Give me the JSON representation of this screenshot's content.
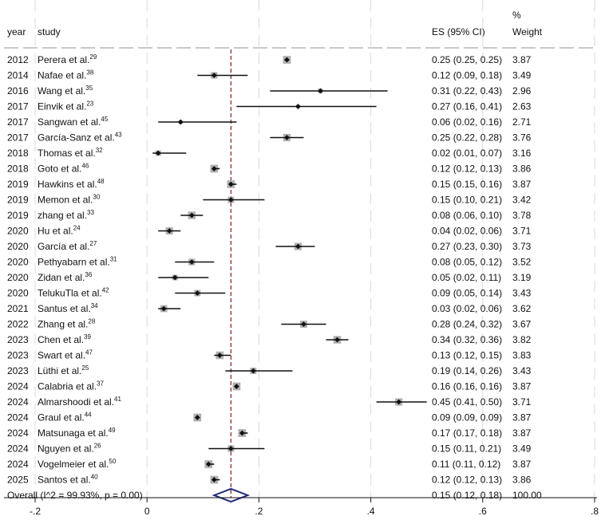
{
  "header": {
    "year": "year",
    "study": "study",
    "es": "ES (95% CI)",
    "weight_pct": "%",
    "weight": "Weight"
  },
  "chart_data": {
    "type": "forest",
    "xlim": [
      -0.2,
      0.8
    ],
    "x_ticks": [
      {
        "value": -0.2,
        "label": "-.2"
      },
      {
        "value": 0,
        "label": "0"
      },
      {
        "value": 0.2,
        "label": ".2"
      },
      {
        "value": 0.4,
        "label": ".4"
      },
      {
        "value": 0.6,
        "label": ".6"
      },
      {
        "value": 0.8,
        "label": ".8"
      }
    ],
    "reference_line": 0.15,
    "studies": [
      {
        "year": "2012",
        "name": "Perera et al.",
        "ref": "29",
        "es": 0.25,
        "lo": 0.25,
        "hi": 0.25,
        "es_ci": "0.25 (0.25, 0.25)",
        "weight": "3.87"
      },
      {
        "year": "2014",
        "name": "Nafae et al.",
        "ref": "38",
        "es": 0.12,
        "lo": 0.09,
        "hi": 0.18,
        "es_ci": "0.12 (0.09, 0.18)",
        "weight": "3.49"
      },
      {
        "year": "2016",
        "name": "Wang et al.",
        "ref": "35",
        "es": 0.31,
        "lo": 0.22,
        "hi": 0.43,
        "es_ci": "0.31 (0.22, 0.43)",
        "weight": "2.96"
      },
      {
        "year": "2017",
        "name": "Einvik et al.",
        "ref": "23",
        "es": 0.27,
        "lo": 0.16,
        "hi": 0.41,
        "es_ci": "0.27 (0.16, 0.41)",
        "weight": "2.63"
      },
      {
        "year": "2017",
        "name": "Sangwan et al.",
        "ref": "45",
        "es": 0.06,
        "lo": 0.02,
        "hi": 0.16,
        "es_ci": "0.06 (0.02, 0.16)",
        "weight": "2.71"
      },
      {
        "year": "2017",
        "name": "García-Sanz et al.",
        "ref": "43",
        "es": 0.25,
        "lo": 0.22,
        "hi": 0.28,
        "es_ci": "0.25 (0.22, 0.28)",
        "weight": "3.76"
      },
      {
        "year": "2018",
        "name": "Thomas et al.",
        "ref": "32",
        "es": 0.02,
        "lo": 0.01,
        "hi": 0.07,
        "es_ci": "0.02 (0.01, 0.07)",
        "weight": "3.16"
      },
      {
        "year": "2018",
        "name": "Goto et al.",
        "ref": "46",
        "es": 0.12,
        "lo": 0.12,
        "hi": 0.13,
        "es_ci": "0.12 (0.12, 0.13)",
        "weight": "3.86"
      },
      {
        "year": "2019",
        "name": "Hawkins et al.",
        "ref": "48",
        "es": 0.15,
        "lo": 0.15,
        "hi": 0.16,
        "es_ci": "0.15 (0.15, 0.16)",
        "weight": "3.87"
      },
      {
        "year": "2019",
        "name": "Memon et al.",
        "ref": "30",
        "es": 0.15,
        "lo": 0.1,
        "hi": 0.21,
        "es_ci": "0.15 (0.10, 0.21)",
        "weight": "3.42"
      },
      {
        "year": "2019",
        "name": "zhang et al.",
        "ref": "33",
        "es": 0.08,
        "lo": 0.06,
        "hi": 0.1,
        "es_ci": "0.08 (0.06, 0.10)",
        "weight": "3.78"
      },
      {
        "year": "2020",
        "name": "Hu et al.",
        "ref": "24",
        "es": 0.04,
        "lo": 0.02,
        "hi": 0.06,
        "es_ci": "0.04 (0.02, 0.06)",
        "weight": "3.71"
      },
      {
        "year": "2020",
        "name": "García et al.",
        "ref": "27",
        "es": 0.27,
        "lo": 0.23,
        "hi": 0.3,
        "es_ci": "0.27 (0.23, 0.30)",
        "weight": "3.73"
      },
      {
        "year": "2020",
        "name": "Pethyabarn et al.",
        "ref": "31",
        "es": 0.08,
        "lo": 0.05,
        "hi": 0.12,
        "es_ci": "0.08 (0.05, 0.12)",
        "weight": "3.52"
      },
      {
        "year": "2020",
        "name": "Zidan et al.",
        "ref": "36",
        "es": 0.05,
        "lo": 0.02,
        "hi": 0.11,
        "es_ci": "0.05 (0.02, 0.11)",
        "weight": "3.19"
      },
      {
        "year": "2020",
        "name": "TelukuTla et al.",
        "ref": "42",
        "es": 0.09,
        "lo": 0.05,
        "hi": 0.14,
        "es_ci": "0.09 (0.05, 0.14)",
        "weight": "3.43"
      },
      {
        "year": "2021",
        "name": "Santus et al.",
        "ref": "34",
        "es": 0.03,
        "lo": 0.02,
        "hi": 0.06,
        "es_ci": "0.03 (0.02, 0.06)",
        "weight": "3.62"
      },
      {
        "year": "2022",
        "name": "Zhang et al.",
        "ref": "28",
        "es": 0.28,
        "lo": 0.24,
        "hi": 0.32,
        "es_ci": "0.28 (0.24, 0.32)",
        "weight": "3.67"
      },
      {
        "year": "2023",
        "name": "Chen et al.",
        "ref": "39",
        "es": 0.34,
        "lo": 0.32,
        "hi": 0.36,
        "es_ci": "0.34 (0.32, 0.36)",
        "weight": "3.82"
      },
      {
        "year": "2023",
        "name": "Swart et al.",
        "ref": "47",
        "es": 0.13,
        "lo": 0.12,
        "hi": 0.15,
        "es_ci": "0.13 (0.12, 0.15)",
        "weight": "3.83"
      },
      {
        "year": "2023",
        "name": "Lüthi et al.",
        "ref": "25",
        "es": 0.19,
        "lo": 0.14,
        "hi": 0.26,
        "es_ci": "0.19 (0.14, 0.26)",
        "weight": "3.43"
      },
      {
        "year": "2024",
        "name": "Calabria et al.",
        "ref": "37",
        "es": 0.16,
        "lo": 0.16,
        "hi": 0.16,
        "es_ci": "0.16 (0.16, 0.16)",
        "weight": "3.87"
      },
      {
        "year": "2024",
        "name": "Almarshoodi et al.",
        "ref": "41",
        "es": 0.45,
        "lo": 0.41,
        "hi": 0.5,
        "es_ci": "0.45 (0.41, 0.50)",
        "weight": "3.71"
      },
      {
        "year": "2024",
        "name": "Graul et al.",
        "ref": "44",
        "es": 0.09,
        "lo": 0.09,
        "hi": 0.09,
        "es_ci": "0.09 (0.09, 0.09)",
        "weight": "3.87"
      },
      {
        "year": "2024",
        "name": "Matsunaga et al.",
        "ref": "49",
        "es": 0.17,
        "lo": 0.17,
        "hi": 0.18,
        "es_ci": "0.17 (0.17, 0.18)",
        "weight": "3.87"
      },
      {
        "year": "2024",
        "name": "Nguyen et al.",
        "ref": "26",
        "es": 0.15,
        "lo": 0.11,
        "hi": 0.21,
        "es_ci": "0.15 (0.11, 0.21)",
        "weight": "3.49"
      },
      {
        "year": "2024",
        "name": "Vogelmeier et al.",
        "ref": "50",
        "es": 0.11,
        "lo": 0.11,
        "hi": 0.12,
        "es_ci": "0.11 (0.11, 0.12)",
        "weight": "3.87"
      },
      {
        "year": "2025",
        "name": "Santos et al.",
        "ref": "40",
        "es": 0.12,
        "lo": 0.12,
        "hi": 0.13,
        "es_ci": "0.12 (0.12, 0.13)",
        "weight": "3.86"
      }
    ],
    "overall": {
      "label": "Overall  (I^2 = 99.93%, p = 0.00)",
      "es": 0.15,
      "lo": 0.12,
      "hi": 0.18,
      "es_ci": "0.15 (0.12, 0.18)",
      "weight": "100.00"
    },
    "colors": {
      "marker": "#111111",
      "box": "#b0b0b0",
      "reference": "#8b1a1a",
      "overall_diamond": "#1f2a7a",
      "grid": "#d9d9d9"
    }
  }
}
